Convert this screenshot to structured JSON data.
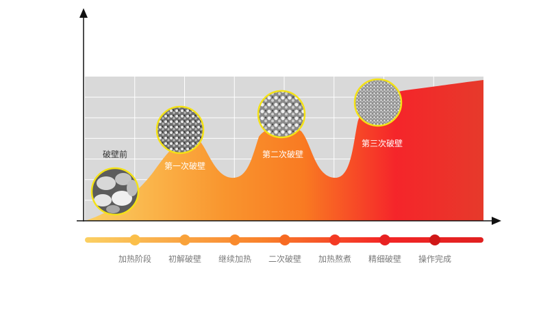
{
  "chart_data": {
    "type": "area",
    "title": "",
    "xlabel": "",
    "ylabel": "",
    "grid": true,
    "annotations": [
      {
        "label": "破壁前",
        "color": "#333333"
      },
      {
        "label": "第一次破壁",
        "color": "#ffffff"
      },
      {
        "label": "第二次破壁",
        "color": "#ffffff"
      },
      {
        "label": "第三次破壁",
        "color": "#ffffff"
      }
    ],
    "stages": [
      "加热阶段",
      "初解破壁",
      "继续加热",
      "二次破壁",
      "加热熬煮",
      "精细破壁",
      "操作完成"
    ],
    "colors": {
      "gradient_start": "#fbd063",
      "gradient_mid": "#f97a22",
      "gradient_hot": "#f5252a",
      "gradient_end": "#e63a2b",
      "circle_border": "#f4e216",
      "grid_bg": "#d9d9d9",
      "axis": "#111111",
      "stage_label": "#7a7a7a"
    }
  }
}
